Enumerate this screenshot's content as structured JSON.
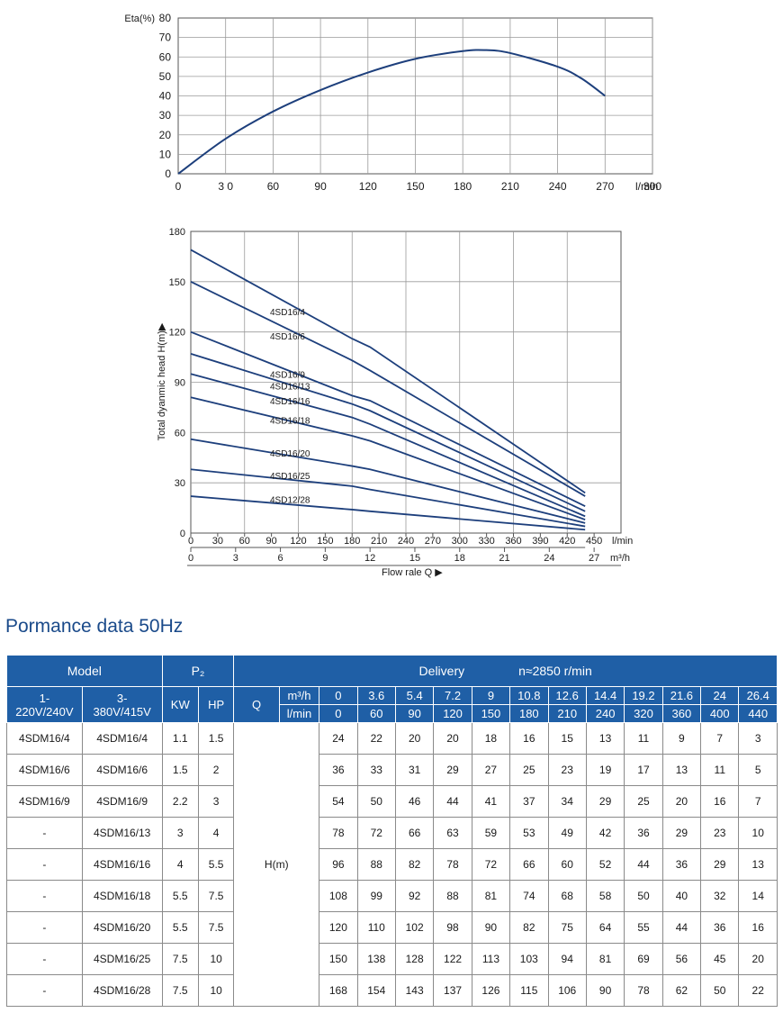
{
  "eta_chart": {
    "ylabel": "Eta(%)",
    "xunit": "l/min",
    "yticks": [
      "0",
      "10",
      "20",
      "30",
      "40",
      "50",
      "60",
      "70",
      "80"
    ],
    "xticks": [
      "0",
      "3 0",
      "60",
      "90",
      "120",
      "150",
      "180",
      "210",
      "240",
      "270",
      "300"
    ]
  },
  "head_chart": {
    "ylabel": "Total dyanmic head H(m)▶",
    "yticks": [
      "0",
      "30",
      "60",
      "90",
      "120",
      "150",
      "180"
    ],
    "xticks_lmin": [
      "0",
      "30",
      "60",
      "90",
      "120",
      "150",
      "180",
      "210",
      "240",
      "270",
      "300",
      "330",
      "360",
      "390",
      "420",
      "450"
    ],
    "xticks_m3h": [
      "0",
      "3",
      "6",
      "9",
      "12",
      "15",
      "18",
      "21",
      "24",
      "27"
    ],
    "unit_lmin": "l/min",
    "unit_m3h": "m³/h",
    "xlabel": "Flow rale Q ▶"
  },
  "chart_data": [
    {
      "type": "line",
      "ylabel": "Eta(%)",
      "xlabel": "l/min",
      "xlim": [
        0,
        300
      ],
      "ylim": [
        0,
        80
      ],
      "series": [
        {
          "x": [
            0,
            30,
            60,
            90,
            120,
            150,
            180,
            195,
            210,
            240,
            255,
            270
          ],
          "y": [
            0,
            18,
            32,
            43,
            52,
            59,
            63,
            63.5,
            62,
            55,
            49,
            40
          ]
        }
      ]
    },
    {
      "type": "line",
      "ylabel": "Total dyanmic head H(m)",
      "xlabel": "Flow rale Q",
      "xlim": [
        0,
        450
      ],
      "ylim": [
        0,
        180
      ],
      "series": [
        {
          "name": "4SD16/4",
          "x": [
            0,
            180,
            200,
            440
          ],
          "y": [
            169,
            116,
            111,
            24
          ]
        },
        {
          "name": "4SD16/6",
          "x": [
            0,
            180,
            200,
            440
          ],
          "y": [
            150,
            103,
            97,
            22
          ]
        },
        {
          "name": "4SD16/9",
          "x": [
            0,
            180,
            200,
            440
          ],
          "y": [
            120,
            82,
            79,
            16
          ]
        },
        {
          "name": "4SD16/13",
          "x": [
            0,
            180,
            200,
            440
          ],
          "y": [
            107,
            77,
            73,
            13
          ]
        },
        {
          "name": "4SD16/16",
          "x": [
            0,
            180,
            200,
            440
          ],
          "y": [
            95,
            69,
            65,
            10
          ]
        },
        {
          "name": "4SD16/18",
          "x": [
            0,
            180,
            200,
            440
          ],
          "y": [
            81,
            58,
            55,
            8
          ]
        },
        {
          "name": "4SD16/20",
          "x": [
            0,
            180,
            200,
            440
          ],
          "y": [
            56,
            40,
            38,
            6
          ]
        },
        {
          "name": "4SD16/25",
          "x": [
            0,
            180,
            200,
            440
          ],
          "y": [
            38,
            28,
            26,
            4
          ]
        },
        {
          "name": "4SD12/28",
          "x": [
            0,
            180,
            200,
            440
          ],
          "y": [
            22,
            14,
            13,
            2
          ]
        }
      ]
    },
    {
      "type": "table",
      "title": "Pormance data 50Hz",
      "header_row1": {
        "model": "Model",
        "p2": "P₂",
        "delivery": "Delivery",
        "speed": "n≈2850 r/min"
      },
      "header_row2": {
        "col1": "1-\n220V/240V",
        "col2": "3-\n380V/415V",
        "kw": "KW",
        "hp": "HP",
        "q": "Q",
        "unit_m3h": "m³/h"
      },
      "header_row3": {
        "unit_lmin": "l/min"
      },
      "q_m3h": [
        "0",
        "3.6",
        "5.4",
        "7.2",
        "9",
        "10.8",
        "12.6",
        "14.4",
        "19.2",
        "21.6",
        "24",
        "26.4"
      ],
      "q_lmin": [
        "0",
        "60",
        "90",
        "120",
        "150",
        "180",
        "210",
        "240",
        "320",
        "360",
        "400",
        "440"
      ],
      "h_label": "H(m)",
      "rows": [
        {
          "m1": "4SDM16/4",
          "m3": "4SDM16/4",
          "kw": "1.1",
          "hp": "1.5",
          "h": [
            "24",
            "22",
            "20",
            "20",
            "18",
            "16",
            "15",
            "13",
            "11",
            "9",
            "7",
            "3"
          ]
        },
        {
          "m1": "4SDM16/6",
          "m3": "4SDM16/6",
          "kw": "1.5",
          "hp": "2",
          "h": [
            "36",
            "33",
            "31",
            "29",
            "27",
            "25",
            "23",
            "19",
            "17",
            "13",
            "11",
            "5"
          ]
        },
        {
          "m1": "4SDM16/9",
          "m3": "4SDM16/9",
          "kw": "2.2",
          "hp": "3",
          "h": [
            "54",
            "50",
            "46",
            "44",
            "41",
            "37",
            "34",
            "29",
            "25",
            "20",
            "16",
            "7"
          ]
        },
        {
          "m1": "-",
          "m3": "4SDM16/13",
          "kw": "3",
          "hp": "4",
          "h": [
            "78",
            "72",
            "66",
            "63",
            "59",
            "53",
            "49",
            "42",
            "36",
            "29",
            "23",
            "10"
          ]
        },
        {
          "m1": "-",
          "m3": "4SDM16/16",
          "kw": "4",
          "hp": "5.5",
          "h": [
            "96",
            "88",
            "82",
            "78",
            "72",
            "66",
            "60",
            "52",
            "44",
            "36",
            "29",
            "13"
          ]
        },
        {
          "m1": "-",
          "m3": "4SDM16/18",
          "kw": "5.5",
          "hp": "7.5",
          "h": [
            "108",
            "99",
            "92",
            "88",
            "81",
            "74",
            "68",
            "58",
            "50",
            "40",
            "32",
            "14"
          ]
        },
        {
          "m1": "-",
          "m3": "4SDM16/20",
          "kw": "5.5",
          "hp": "7.5",
          "h": [
            "120",
            "110",
            "102",
            "98",
            "90",
            "82",
            "75",
            "64",
            "55",
            "44",
            "36",
            "16"
          ]
        },
        {
          "m1": "-",
          "m3": "4SDM16/25",
          "kw": "7.5",
          "hp": "10",
          "h": [
            "150",
            "138",
            "128",
            "122",
            "113",
            "103",
            "94",
            "81",
            "69",
            "56",
            "45",
            "20"
          ]
        },
        {
          "m1": "-",
          "m3": "4SDM16/28",
          "kw": "7.5",
          "hp": "10",
          "h": [
            "168",
            "154",
            "143",
            "137",
            "126",
            "115",
            "106",
            "90",
            "78",
            "62",
            "50",
            "22"
          ]
        }
      ]
    }
  ],
  "colors": {
    "curve": "#1d3f7c",
    "table_header": "#1f5fa6",
    "title": "#1a4a8a",
    "grid": "#9a9a9a"
  }
}
